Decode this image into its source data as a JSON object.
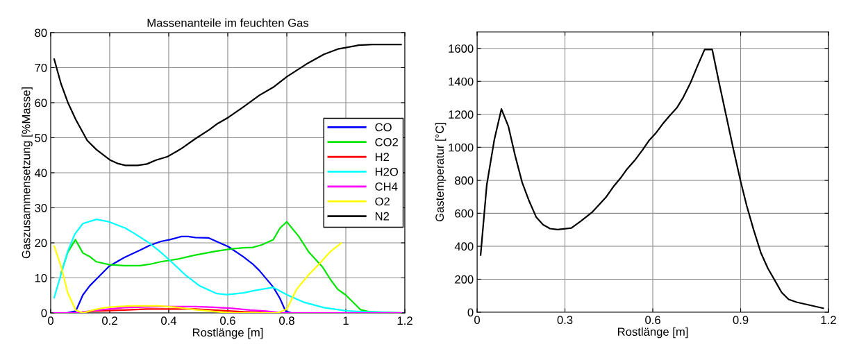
{
  "chart_data": [
    {
      "type": "line",
      "title": "Massenanteile im feuchten Gas",
      "xlabel": "Rostlänge [m]",
      "ylabel": "Gaszusammensetzung [%Masse]",
      "xlim": [
        0,
        1.2
      ],
      "xticks": [
        0,
        0.2,
        0.4,
        0.6,
        0.8,
        1,
        1.2
      ],
      "ylim": [
        0,
        80
      ],
      "yticks": [
        0,
        10,
        20,
        30,
        40,
        50,
        60,
        70,
        80
      ],
      "grid": true,
      "legend": "right",
      "marker": "none",
      "line_style": "solid",
      "series": [
        {
          "name": "CO",
          "color": "#0000ff",
          "x": [
            0.012,
            0.054,
            0.085,
            0.109,
            0.132,
            0.159,
            0.198,
            0.249,
            0.303,
            0.334,
            0.373,
            0.404,
            0.443,
            0.466,
            0.49,
            0.536,
            0.567,
            0.602,
            0.653,
            0.684,
            0.707,
            0.754,
            0.777,
            0.796,
            0.816,
            1.187
          ],
          "values": [
            0,
            0,
            0.5,
            5.1,
            7.7,
            10.0,
            13.3,
            15.8,
            17.9,
            19.2,
            20.4,
            20.9,
            21.8,
            21.8,
            21.5,
            21.4,
            20.2,
            18.9,
            16.0,
            14.0,
            12.1,
            7.4,
            4.1,
            0.5,
            0,
            0
          ]
        },
        {
          "name": "CO2",
          "color": "#00e600",
          "x": [
            0.035,
            0.058,
            0.084,
            0.109,
            0.132,
            0.155,
            0.198,
            0.249,
            0.303,
            0.342,
            0.373,
            0.427,
            0.49,
            0.559,
            0.614,
            0.653,
            0.684,
            0.715,
            0.754,
            0.777,
            0.8,
            0.84,
            0.875,
            0.922,
            0.949,
            0.973,
            1.0,
            1.05,
            1.082,
            1.187
          ],
          "values": [
            11.3,
            17.3,
            20.9,
            17.1,
            16.1,
            14.6,
            13.8,
            13.5,
            13.5,
            14.0,
            14.6,
            15.3,
            16.5,
            17.6,
            18.3,
            18.6,
            18.7,
            19.4,
            20.9,
            24.2,
            26.0,
            21.9,
            17.3,
            13.0,
            9.4,
            6.7,
            5.1,
            0.9,
            0.3,
            0
          ]
        },
        {
          "name": "H2",
          "color": "#ff0000",
          "x": [
            0.012,
            0.085,
            0.148,
            0.249,
            0.326,
            0.49,
            0.552,
            0.653,
            0.769,
            1.187
          ],
          "values": [
            0,
            0,
            0.5,
            0.8,
            1.1,
            1.1,
            0.8,
            0.3,
            0,
            0
          ]
        },
        {
          "name": "H2O",
          "color": "#00ffff",
          "x": [
            0.012,
            0.035,
            0.058,
            0.082,
            0.109,
            0.155,
            0.198,
            0.253,
            0.287,
            0.326,
            0.365,
            0.404,
            0.458,
            0.505,
            0.563,
            0.598,
            0.653,
            0.692,
            0.754,
            0.8,
            0.856,
            0.926,
            1.0,
            1.066,
            1.187
          ],
          "values": [
            4.4,
            11,
            17.6,
            22.5,
            25.5,
            26.7,
            26.0,
            24.2,
            22.5,
            20.4,
            17.9,
            15.0,
            10.7,
            7.7,
            5.5,
            5.2,
            5.7,
            6.4,
            7.3,
            5.2,
            3.1,
            1.5,
            0.6,
            0.3,
            0
          ]
        },
        {
          "name": "CH4",
          "color": "#ff00ff",
          "x": [
            0.012,
            0.085,
            0.148,
            0.249,
            0.365,
            0.49,
            0.552,
            0.614,
            0.676,
            0.73,
            0.785,
            1.187
          ],
          "values": [
            0,
            0,
            0.7,
            1.5,
            1.8,
            1.8,
            1.6,
            1.3,
            0.8,
            0.5,
            0,
            0
          ]
        },
        {
          "name": "O2",
          "color": "#ffff00",
          "x": [
            0.012,
            0.035,
            0.058,
            0.085,
            0.109,
            0.148,
            0.183,
            0.225,
            0.272,
            0.365,
            0.427,
            0.49,
            0.552,
            0.614,
            0.769,
            0.8,
            0.833,
            0.872,
            0.91,
            0.949,
            0.984
          ],
          "values": [
            19.1,
            13.3,
            5.7,
            0.8,
            0,
            0.9,
            1.5,
            1.8,
            2.0,
            2.0,
            1.6,
            0.9,
            0.4,
            0,
            0,
            1.1,
            6.7,
            10.7,
            14.0,
            17.6,
            19.9
          ]
        },
        {
          "name": "N2",
          "color": "#000000",
          "x": [
            0.012,
            0.035,
            0.058,
            0.085,
            0.124,
            0.155,
            0.202,
            0.225,
            0.253,
            0.295,
            0.326,
            0.357,
            0.396,
            0.443,
            0.49,
            0.536,
            0.563,
            0.602,
            0.653,
            0.707,
            0.754,
            0.8,
            0.872,
            0.926,
            0.973,
            1.0,
            1.043,
            1.09,
            1.187
          ],
          "values": [
            72.4,
            65.4,
            60.1,
            55.2,
            49.2,
            46.6,
            43.6,
            42.7,
            42.1,
            42.1,
            42.5,
            43.6,
            44.6,
            46.9,
            49.7,
            52.2,
            53.9,
            55.8,
            58.8,
            62.1,
            64.4,
            67.4,
            71.3,
            73.8,
            75.3,
            75.7,
            76.4,
            76.6,
            76.6
          ]
        }
      ]
    },
    {
      "type": "line",
      "xlabel": "Rostlänge [m]",
      "ylabel": "Gastemperatur [°C]",
      "xlim": [
        0,
        1.2
      ],
      "xticks": [
        0,
        0.3,
        0.6,
        0.9,
        1.2
      ],
      "ylim": [
        0,
        1700
      ],
      "yticks": [
        0,
        200,
        400,
        600,
        800,
        1000,
        1200,
        1400,
        1600
      ],
      "grid": true,
      "marker": "none",
      "line_style": "solid",
      "series": [
        {
          "color": "#000000",
          "x": [
            0.012,
            0.033,
            0.059,
            0.083,
            0.107,
            0.13,
            0.154,
            0.178,
            0.202,
            0.225,
            0.249,
            0.275,
            0.322,
            0.356,
            0.392,
            0.415,
            0.44,
            0.467,
            0.49,
            0.512,
            0.538,
            0.565,
            0.587,
            0.609,
            0.633,
            0.656,
            0.682,
            0.704,
            0.728,
            0.751,
            0.777,
            0.803,
            0.826,
            0.85,
            0.874,
            0.9,
            0.921,
            0.945,
            0.969,
            0.993,
            1.016,
            1.04,
            1.064,
            1.091,
            1.182
          ],
          "values": [
            347,
            772,
            1048,
            1232,
            1126,
            949,
            786,
            673,
            576,
            531,
            507,
            501,
            511,
            555,
            605,
            649,
            697,
            765,
            814,
            868,
            920,
            984,
            1041,
            1083,
            1140,
            1189,
            1239,
            1303,
            1388,
            1487,
            1593,
            1593,
            1395,
            1197,
            998,
            793,
            644,
            496,
            361,
            266,
            195,
            120,
            78,
            61,
            24
          ]
        }
      ]
    }
  ]
}
